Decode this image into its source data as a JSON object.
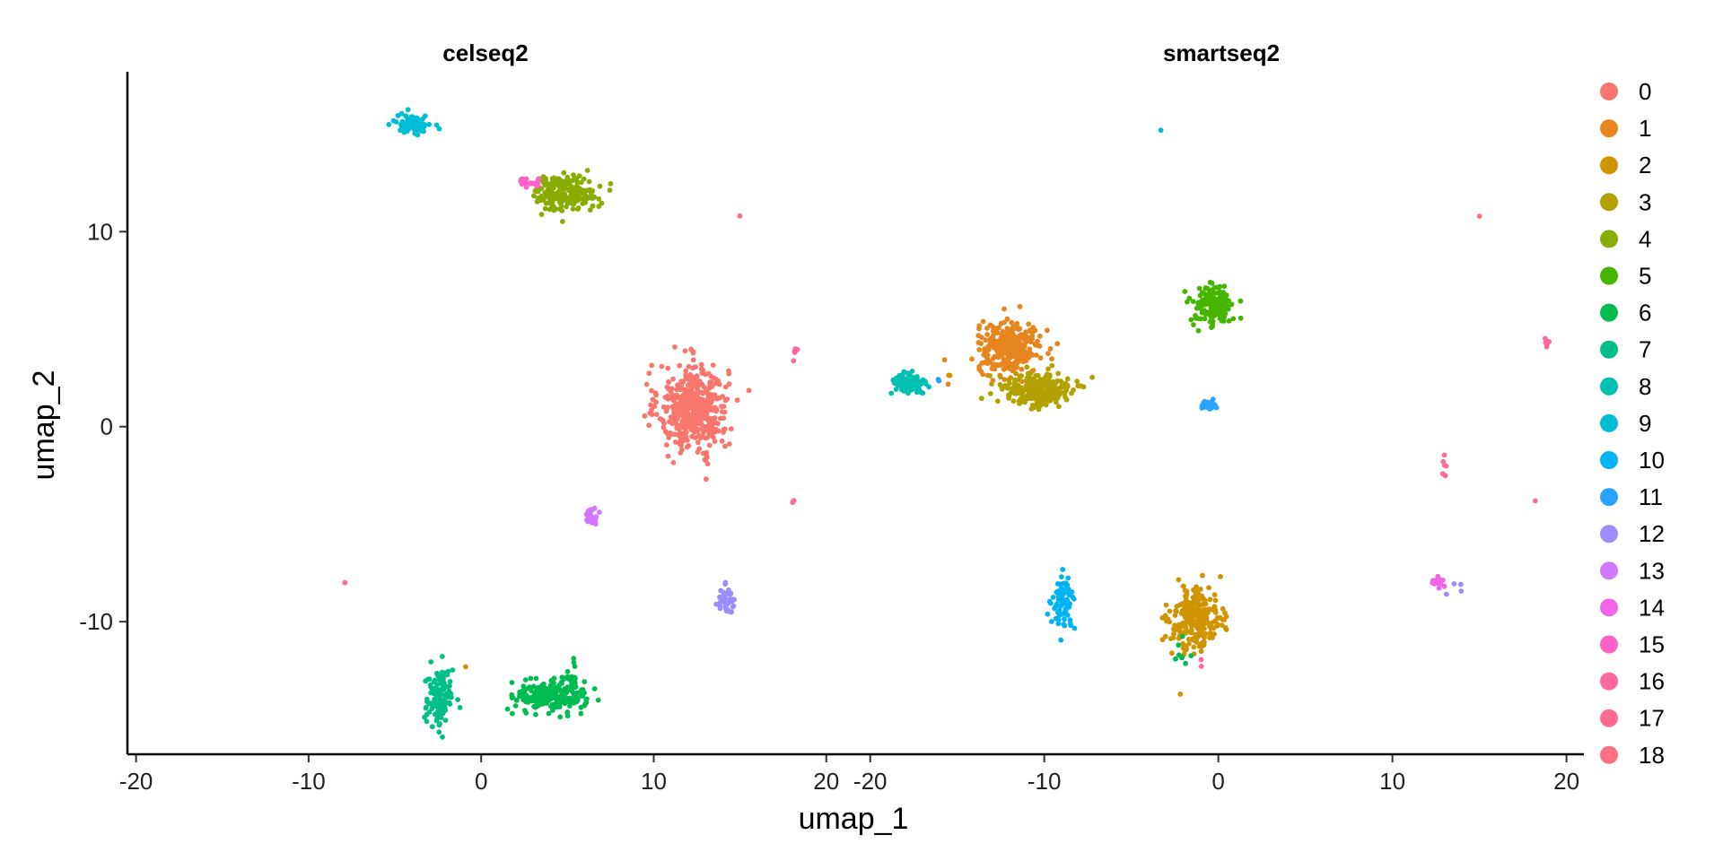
{
  "chart_data": {
    "type": "scatter",
    "xlabel": "umap_1",
    "ylabel": "umap_2",
    "xlim": [
      -20.5,
      21
    ],
    "ylim": [
      -16.8,
      18.2
    ],
    "x_ticks": [
      -20,
      -10,
      0,
      10,
      20
    ],
    "x_tick_labels": [
      "-20",
      "-10",
      "0",
      "10",
      "20"
    ],
    "y_ticks": [
      -10,
      0,
      10
    ],
    "y_tick_labels": [
      "-10",
      "0",
      "10"
    ],
    "grid": false,
    "legend_position": "right",
    "legend": [
      "0",
      "1",
      "2",
      "3",
      "4",
      "5",
      "6",
      "7",
      "8",
      "9",
      "10",
      "11",
      "12",
      "13",
      "14",
      "15",
      "16",
      "17",
      "18"
    ],
    "colors": [
      "#F8766D",
      "#E7851E",
      "#D09400",
      "#B2A100",
      "#89AC00",
      "#45B500",
      "#00BC51",
      "#00C087",
      "#00C0B2",
      "#00BCD6",
      "#00B3F2",
      "#29A3FF",
      "#9C8DFF",
      "#D277FF",
      "#F166E8",
      "#FF61C7",
      "#FF689E",
      "#FF6B93",
      "#FF6F83"
    ],
    "panels": [
      {
        "title": "celseq2",
        "clusters": [
          {
            "cluster": 0,
            "cx": 12.3,
            "cy": 1.0,
            "sx": 1.0,
            "sy": 1.1,
            "n": 460
          },
          {
            "cluster": 0,
            "cx": 13.0,
            "cy": -1.6,
            "sx": 0.1,
            "sy": 0.6,
            "n": 6
          },
          {
            "cluster": 9,
            "cx": -3.9,
            "cy": 15.5,
            "sx": 0.5,
            "sy": 0.25,
            "n": 85
          },
          {
            "cluster": 4,
            "cx": 4.9,
            "cy": 12.0,
            "sx": 0.9,
            "sy": 0.45,
            "n": 190
          },
          {
            "cluster": 15,
            "cx": 2.9,
            "cy": 12.5,
            "sx": 0.5,
            "sy": 0.12,
            "n": 20
          },
          {
            "cluster": 13,
            "cx": 6.4,
            "cy": -4.6,
            "sx": 0.2,
            "sy": 0.2,
            "n": 30
          },
          {
            "cluster": 12,
            "cx": 14.2,
            "cy": -8.9,
            "sx": 0.25,
            "sy": 0.35,
            "n": 40
          },
          {
            "cluster": 16,
            "cx": 18.2,
            "cy": 3.8,
            "sx": 0.1,
            "sy": 0.15,
            "n": 6
          },
          {
            "cluster": 17,
            "cx": 18.1,
            "cy": -3.8,
            "sx": 0.08,
            "sy": 0.05,
            "n": 3
          },
          {
            "cluster": 18,
            "cx": 15.0,
            "cy": 10.8,
            "sx": 0.01,
            "sy": 0.01,
            "n": 1
          },
          {
            "cluster": 17,
            "cx": -7.9,
            "cy": -8.0,
            "sx": 0.01,
            "sy": 0.01,
            "n": 1
          },
          {
            "cluster": 7,
            "cx": -2.4,
            "cy": -13.9,
            "sx": 0.4,
            "sy": 0.75,
            "n": 140
          },
          {
            "cluster": 6,
            "cx": 4.0,
            "cy": -13.8,
            "sx": 1.0,
            "sy": 0.4,
            "n": 220
          },
          {
            "cluster": 6,
            "cx": 5.4,
            "cy": -12.8,
            "sx": 0.2,
            "sy": 0.35,
            "n": 18
          },
          {
            "cluster": 2,
            "cx": -0.9,
            "cy": -12.3,
            "sx": 0.01,
            "sy": 0.01,
            "n": 1
          }
        ]
      },
      {
        "title": "smartseq2",
        "clusters": [
          {
            "cluster": 1,
            "cx": -12.0,
            "cy": 4.0,
            "sx": 0.9,
            "sy": 0.65,
            "n": 300
          },
          {
            "cluster": 3,
            "cx": -10.4,
            "cy": 1.9,
            "sx": 1.0,
            "sy": 0.45,
            "n": 260
          },
          {
            "cluster": 8,
            "cx": -17.8,
            "cy": 2.2,
            "sx": 0.5,
            "sy": 0.3,
            "n": 85
          },
          {
            "cluster": 11,
            "cx": -16.0,
            "cy": 2.4,
            "sx": 0.1,
            "sy": 0.05,
            "n": 2
          },
          {
            "cluster": 2,
            "cx": -15.5,
            "cy": 2.6,
            "sx": 0.05,
            "sy": 0.05,
            "n": 2
          },
          {
            "cluster": 5,
            "cx": -0.3,
            "cy": 6.2,
            "sx": 0.6,
            "sy": 0.55,
            "n": 150
          },
          {
            "cluster": 11,
            "cx": -0.6,
            "cy": 1.1,
            "sx": 0.3,
            "sy": 0.12,
            "n": 40
          },
          {
            "cluster": 10,
            "cx": -8.9,
            "cy": -9.0,
            "sx": 0.3,
            "sy": 0.6,
            "n": 80
          },
          {
            "cluster": 2,
            "cx": -1.3,
            "cy": -9.9,
            "sx": 0.75,
            "sy": 0.8,
            "n": 250
          },
          {
            "cluster": 6,
            "cx": -2.2,
            "cy": -11.6,
            "sx": 0.2,
            "sy": 0.35,
            "n": 8
          },
          {
            "cluster": 16,
            "cx": -1.0,
            "cy": -12.1,
            "sx": 0.05,
            "sy": 0.1,
            "n": 2
          },
          {
            "cluster": 2,
            "cx": -2.2,
            "cy": -13.7,
            "sx": 0.01,
            "sy": 0.01,
            "n": 1
          },
          {
            "cluster": 9,
            "cx": -3.3,
            "cy": 15.2,
            "sx": 0.01,
            "sy": 0.01,
            "n": 1
          },
          {
            "cluster": 18,
            "cx": 15.0,
            "cy": 10.8,
            "sx": 0.01,
            "sy": 0.01,
            "n": 1
          },
          {
            "cluster": 16,
            "cx": 18.9,
            "cy": 4.3,
            "sx": 0.1,
            "sy": 0.15,
            "n": 6
          },
          {
            "cluster": 17,
            "cx": 12.9,
            "cy": -2.0,
            "sx": 0.08,
            "sy": 0.3,
            "n": 6
          },
          {
            "cluster": 17,
            "cx": 18.2,
            "cy": -3.8,
            "sx": 0.01,
            "sy": 0.01,
            "n": 1
          },
          {
            "cluster": 14,
            "cx": 12.6,
            "cy": -8.0,
            "sx": 0.2,
            "sy": 0.15,
            "n": 12
          },
          {
            "cluster": 12,
            "cx": 13.5,
            "cy": -8.1,
            "sx": 0.3,
            "sy": 0.2,
            "n": 4
          }
        ]
      }
    ]
  }
}
